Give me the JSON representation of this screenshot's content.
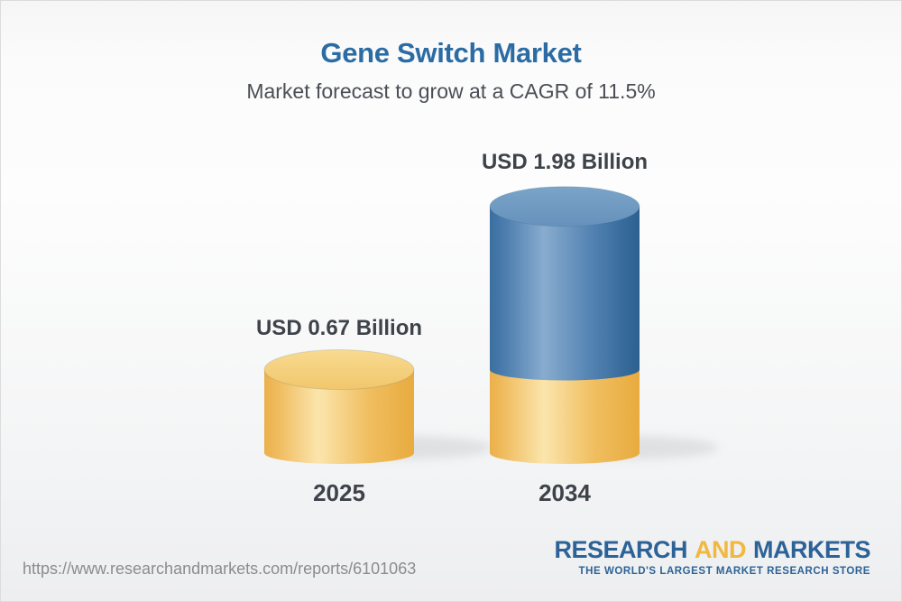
{
  "header": {
    "title": "Gene Switch Market",
    "subtitle": "Market forecast to grow at a CAGR of 11.5%"
  },
  "chart_data": {
    "type": "bar",
    "style": "3d-cylinder-stacked",
    "categories": [
      "2025",
      "2034"
    ],
    "values": [
      0.67,
      1.98
    ],
    "value_labels": [
      "USD 0.67 Billion",
      "USD 1.98 Billion"
    ],
    "unit": "USD Billion",
    "cagr_percent": 11.5,
    "ylim": [
      0,
      2.1
    ],
    "grid": false,
    "legend": false,
    "axes_shown": false,
    "bars": [
      {
        "category": "2025",
        "total": 0.67,
        "segments": [
          {
            "from": 0,
            "to": 0.67,
            "color_key": "gold"
          }
        ]
      },
      {
        "category": "2034",
        "total": 1.98,
        "segments": [
          {
            "from": 0,
            "to": 0.67,
            "color_key": "gold"
          },
          {
            "from": 0.67,
            "to": 1.98,
            "color_key": "blue"
          }
        ]
      }
    ],
    "colors": {
      "gold": "#F2C462",
      "blue": "#4C7FAD"
    }
  },
  "footer": {
    "url": "https://www.researchandmarkets.com/reports/6101063",
    "logo": {
      "word1": "RESEARCH",
      "word2": "AND",
      "word3": "MARKETS",
      "tagline": "THE WORLD'S LARGEST MARKET RESEARCH STORE"
    }
  },
  "colors": {
    "title_blue": "#2B6CA4",
    "subtitle_gray": "#4B4F55",
    "label_dark": "#3E434A",
    "url_gray": "#8C8C8C",
    "logo_blue": "#2D6297",
    "logo_yellow": "#F0B83E"
  }
}
